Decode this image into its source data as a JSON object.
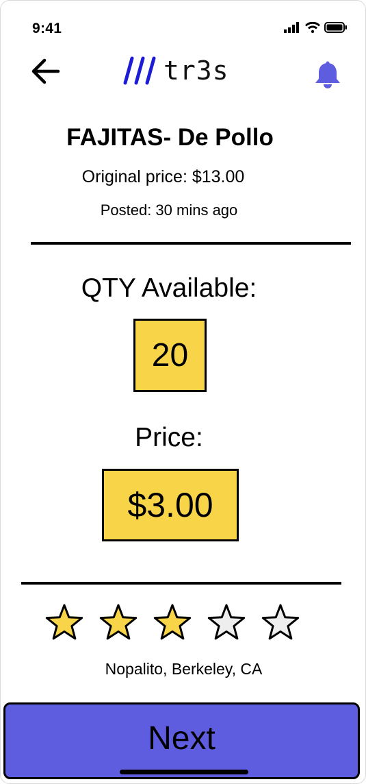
{
  "status_bar": {
    "time": "9:41",
    "icons": [
      "signal-icon",
      "wifi-icon",
      "battery-icon"
    ]
  },
  "header": {
    "back_icon": "arrow-left-icon",
    "logo_text": "tr3s",
    "logo_mark_color": "#1c1cd6",
    "bell_icon": "bell-icon",
    "bell_color": "#5e5ddf"
  },
  "item": {
    "title": "FAJITAS- De Pollo",
    "original_price": "Original price: $13.00",
    "posted": "Posted: 30 mins ago"
  },
  "quantity": {
    "label": "QTY Available:",
    "value": "20"
  },
  "price": {
    "label": "Price:",
    "value": "$3.00"
  },
  "rating": {
    "value": 3,
    "max": 5,
    "filled_color": "#f8d548",
    "empty_color": "#eeeeee"
  },
  "location": "Nopalito, Berkeley, CA",
  "next_button": {
    "label": "Next",
    "color": "#5e5ddf"
  },
  "accent_yellow": "#f8d548"
}
